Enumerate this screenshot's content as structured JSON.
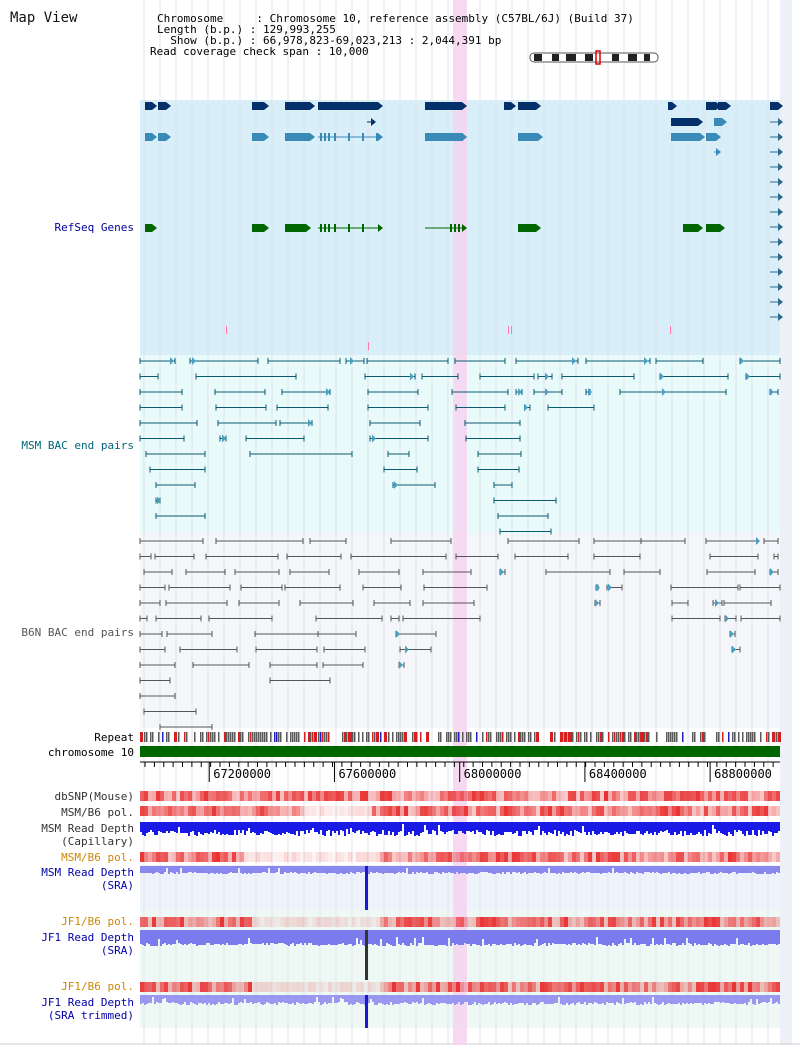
{
  "title": "Map View",
  "header": {
    "chromosome_key": "Chromosome    ",
    "chromosome_value": "Chromosome 10, reference assembly (C57BL/6J) (Build 37)",
    "length_key": "Length (b.p.)",
    "length_value": "129,993,255",
    "show_key": "  Show (b.p.)",
    "show_value": "66,978,823-69,023,213 : 2,044,391 bp",
    "span_key": "Read coverage check span",
    "span_value": "10,000"
  },
  "tracks": {
    "refseq": {
      "label": "RefSeq Genes",
      "color": "#000099"
    },
    "msm_bac": {
      "label": "MSM BAC end pairs",
      "color": "#006677"
    },
    "b6n_bac": {
      "label": "B6N BAC end pairs",
      "color": "#555555"
    },
    "repeat": {
      "label": "Repeat",
      "color": "#000000"
    },
    "chromosome": {
      "label": "chromosome 10",
      "color": "#000000"
    },
    "dbsnp": {
      "label": "dbSNP(Mouse)",
      "color": "#333333"
    },
    "msm_b6_pol_1": {
      "label": "MSM/B6 pol.",
      "color": "#333333"
    },
    "msm_depth_cap": {
      "label_1": "MSM Read Depth",
      "label_2": "(Capillary)",
      "color": "#333333"
    },
    "msm_b6_pol_2": {
      "label": "MSM/B6 pol.",
      "color": "#cc8800"
    },
    "msm_depth_sra": {
      "label_1": "MSM Read Depth",
      "label_2": "(SRA)",
      "color": "#0000aa"
    },
    "jf1_b6_pol_1": {
      "label": "JF1/B6 pol.",
      "color": "#cc8800"
    },
    "jf1_depth_sra": {
      "label_1": "JF1 Read Depth",
      "label_2": "(SRA)",
      "color": "#0000aa"
    },
    "jf1_b6_pol_2": {
      "label": "JF1/B6 pol.",
      "color": "#cc8800"
    },
    "jf1_depth_trim": {
      "label_1": "JF1 Read Depth",
      "label_2": "(SRA trimmed)",
      "color": "#0000aa"
    }
  },
  "ruler": {
    "ticks": [
      "67200000",
      "67600000",
      "68000000",
      "68400000",
      "68800000"
    ],
    "start_bp": 66978823,
    "end_bp": 69023213
  },
  "colors": {
    "refseq_bg": "#d8eef8",
    "msm_bg": "#e8fafa",
    "b6n_bg": "#f4f6fa",
    "highlight": "#f6d4f0",
    "chromosome_band": "#006600",
    "gene_dark": "#06306a",
    "gene_mid": "#3a8ab8",
    "gene_green": "#006600"
  }
}
